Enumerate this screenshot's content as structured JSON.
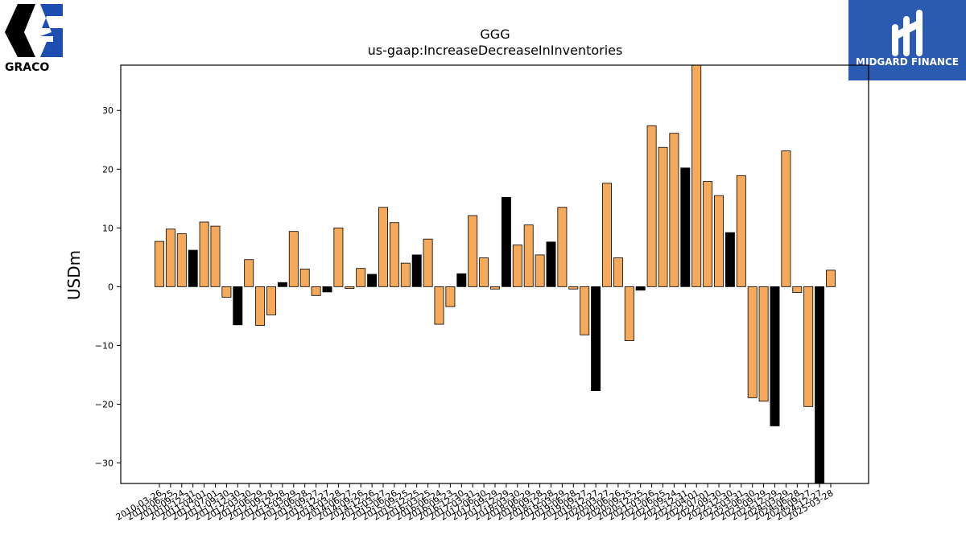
{
  "company_logo": {
    "name": "GRACO",
    "mark": "®"
  },
  "partner_logo": {
    "name": "MIDGARD FINANCE",
    "bg_color": "#2b5bb0"
  },
  "colors": {
    "bar_normal": "#f5a95a",
    "bar_highlight": "#000000",
    "edge": "#000000"
  },
  "chart_data": {
    "type": "bar",
    "title": "GGG",
    "subtitle": "us-gaap:IncreaseDecreaseInInventories",
    "xlabel": "",
    "ylabel": "USDm",
    "ylim": [
      -33.5,
      37.7
    ],
    "yticks": [
      -30,
      -20,
      -10,
      0,
      10,
      20,
      30
    ],
    "ytick_labels": [
      "−30",
      "−20",
      "−10",
      "0",
      "10",
      "20",
      "30"
    ],
    "categories": [
      "2010-03-26",
      "2010-06-25",
      "2010-09-24",
      "2010-12-31",
      "2011-04-01",
      "2011-07-01",
      "2011-09-30",
      "2011-12-30",
      "2012-03-30",
      "2012-06-29",
      "2012-09-28",
      "2012-12-28",
      "2013-03-29",
      "2013-06-28",
      "2013-09-27",
      "2013-12-27",
      "2014-03-28",
      "2014-06-27",
      "2014-09-26",
      "2014-12-26",
      "2015-03-27",
      "2015-06-26",
      "2015-09-25",
      "2015-12-25",
      "2016-03-25",
      "2016-06-24",
      "2016-09-23",
      "2016-12-30",
      "2017-03-31",
      "2017-06-30",
      "2017-09-29",
      "2017-12-29",
      "2018-03-30",
      "2018-06-29",
      "2018-09-28",
      "2018-12-28",
      "2019-03-29",
      "2019-06-28",
      "2019-09-27",
      "2019-12-27",
      "2020-03-27",
      "2020-06-26",
      "2020-09-25",
      "2020-12-25",
      "2021-03-26",
      "2021-06-25",
      "2021-09-24",
      "2021-12-31",
      "2022-04-01",
      "2022-07-01",
      "2022-09-30",
      "2022-12-30",
      "2023-03-31",
      "2023-06-30",
      "2023-09-29",
      "2023-12-29",
      "2024-03-29",
      "2024-06-28",
      "2024-09-27",
      "2024-12-27",
      "2025-03-28"
    ],
    "values": [
      7.7,
      9.8,
      9.0,
      6.2,
      11.0,
      10.3,
      -1.8,
      -6.5,
      4.6,
      -6.6,
      -4.8,
      0.7,
      9.4,
      3.0,
      -1.5,
      -0.9,
      10.0,
      -0.3,
      3.1,
      2.1,
      13.5,
      10.9,
      4.0,
      5.4,
      8.1,
      -6.4,
      -3.4,
      2.2,
      12.1,
      4.9,
      -0.4,
      15.2,
      7.1,
      10.5,
      5.4,
      7.6,
      13.5,
      -0.4,
      -8.2,
      -17.7,
      17.6,
      4.9,
      -9.2,
      -0.6,
      27.4,
      23.7,
      26.1,
      20.2,
      37.7,
      17.9,
      15.5,
      9.2,
      18.9,
      -18.9,
      -19.5,
      -23.7,
      23.1,
      -1.0,
      -20.4,
      -33.5,
      2.8
    ],
    "highlight": [
      false,
      false,
      false,
      true,
      false,
      false,
      false,
      true,
      false,
      false,
      false,
      true,
      false,
      false,
      false,
      true,
      false,
      false,
      false,
      true,
      false,
      false,
      false,
      true,
      false,
      false,
      false,
      true,
      false,
      false,
      false,
      true,
      false,
      false,
      false,
      true,
      false,
      false,
      false,
      true,
      false,
      false,
      false,
      true,
      false,
      false,
      false,
      true,
      false,
      false,
      false,
      true,
      false,
      false,
      false,
      true,
      false,
      false,
      false,
      true,
      false
    ],
    "grid": false,
    "legend": "none"
  }
}
